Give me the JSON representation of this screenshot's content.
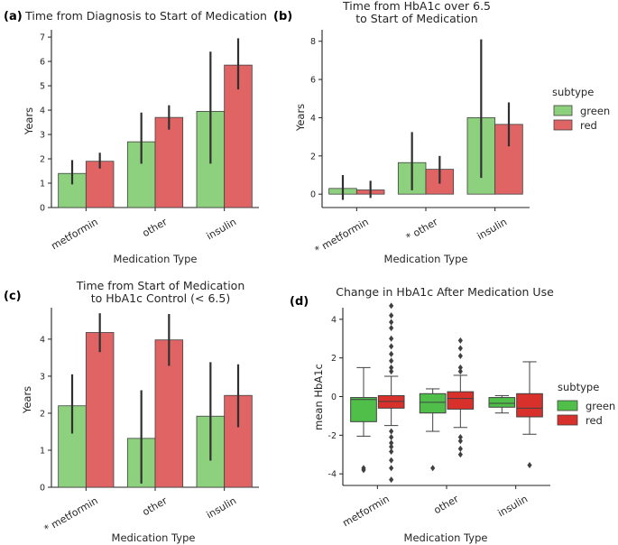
{
  "colors": {
    "green_bar": "#8dd07e",
    "red_bar": "#e06464",
    "green_box": "#4fbf4a",
    "red_box": "#d8302a",
    "edge": "#404040",
    "err": "#303030"
  },
  "legend": {
    "title": "subtype",
    "entries": [
      "green",
      "red"
    ]
  },
  "chart_data": [
    {
      "panel": "(a)",
      "type": "bar",
      "title": "Time from Diagnosis to Start of Medication",
      "xlabel": "Medication Type",
      "ylabel": "Years",
      "ylim": [
        0,
        7.3
      ],
      "yticks": [
        0,
        1,
        2,
        3,
        4,
        5,
        6,
        7
      ],
      "categories": [
        "metformin",
        "other",
        "insulin"
      ],
      "category_labels": [
        "metformin",
        "other",
        "insulin"
      ],
      "series": [
        {
          "name": "green",
          "values": [
            1.4,
            2.7,
            3.95
          ],
          "err_low": [
            0.95,
            1.8,
            1.8
          ],
          "err_high": [
            1.95,
            3.9,
            6.4
          ]
        },
        {
          "name": "red",
          "values": [
            1.9,
            3.7,
            5.85
          ],
          "err_low": [
            1.6,
            3.2,
            4.85
          ],
          "err_high": [
            2.25,
            4.2,
            6.95
          ]
        }
      ]
    },
    {
      "panel": "(b)",
      "type": "bar",
      "title": "Time from HbA1c over 6.5\nto Start of Medication",
      "xlabel": "Medication Type",
      "ylabel": "Years",
      "ylim": [
        -0.7,
        8.6
      ],
      "yticks": [
        0,
        2,
        4,
        6,
        8
      ],
      "categories": [
        "metformin",
        "other",
        "insulin"
      ],
      "category_labels": [
        "* metformin",
        "* other",
        "insulin"
      ],
      "series": [
        {
          "name": "green",
          "values": [
            0.3,
            1.65,
            4.0
          ],
          "err_low": [
            -0.3,
            0.2,
            0.85
          ],
          "err_high": [
            1.0,
            3.25,
            8.1
          ]
        },
        {
          "name": "red",
          "values": [
            0.22,
            1.3,
            3.65
          ],
          "err_low": [
            -0.2,
            0.55,
            2.5
          ],
          "err_high": [
            0.7,
            2.0,
            4.8
          ]
        }
      ]
    },
    {
      "panel": "(c)",
      "type": "bar",
      "title": "Time from Start of Medication\nto HbA1c Control (< 6.5)",
      "xlabel": "Medication Type",
      "ylabel": "Years",
      "ylim": [
        0,
        4.85
      ],
      "yticks": [
        0,
        1,
        2,
        3,
        4
      ],
      "categories": [
        "metformin",
        "other",
        "insulin"
      ],
      "category_labels": [
        "* metformin",
        "other",
        "insulin"
      ],
      "series": [
        {
          "name": "green",
          "values": [
            2.2,
            1.32,
            1.92
          ],
          "err_low": [
            1.45,
            0.1,
            0.72
          ],
          "err_high": [
            3.05,
            2.62,
            3.38
          ]
        },
        {
          "name": "red",
          "values": [
            4.18,
            3.98,
            2.48
          ],
          "err_low": [
            3.65,
            3.28,
            1.62
          ],
          "err_high": [
            4.7,
            4.68,
            3.32
          ]
        }
      ]
    },
    {
      "panel": "(d)",
      "type": "box",
      "title": "Change in HbA1c After Medication Use",
      "xlabel": "Medication Type",
      "ylabel": "mean HbA1c",
      "ylim": [
        -4.6,
        4.6
      ],
      "yticks": [
        -4,
        -2,
        0,
        2,
        4
      ],
      "categories": [
        "metformin",
        "other",
        "insulin"
      ],
      "category_labels": [
        "metformin",
        "other",
        "insulin"
      ],
      "series": [
        {
          "name": "green",
          "boxes": [
            {
              "whislo": -2.05,
              "q1": -1.3,
              "med": -0.15,
              "q3": -0.05,
              "whishi": 1.5,
              "fliers": [
                -3.7,
                -3.8
              ]
            },
            {
              "whislo": -1.8,
              "q1": -0.85,
              "med": -0.3,
              "q3": 0.15,
              "whishi": 0.4,
              "fliers": [
                -3.7
              ]
            },
            {
              "whislo": -0.85,
              "q1": -0.55,
              "med": -0.35,
              "q3": -0.05,
              "whishi": 0.05,
              "fliers": []
            }
          ]
        },
        {
          "name": "red",
          "boxes": [
            {
              "whislo": -1.5,
              "q1": -0.6,
              "med": -0.25,
              "q3": 0.05,
              "whishi": 1.05,
              "fliers": [
                4.7,
                4.2,
                3.85,
                3.55,
                3.0,
                2.6,
                2.2,
                1.85,
                1.5,
                1.3,
                -1.8,
                -2.1,
                -2.4,
                -2.6,
                -2.85,
                -3.3,
                -3.7,
                -4.3
              ]
            },
            {
              "whislo": -1.6,
              "q1": -0.65,
              "med": -0.1,
              "q3": 0.25,
              "whishi": 1.1,
              "fliers": [
                2.9,
                2.5,
                2.1,
                1.5,
                1.3,
                -2.1,
                -2.3,
                -2.7,
                -3.0
              ]
            },
            {
              "whislo": -1.95,
              "q1": -1.05,
              "med": -0.6,
              "q3": 0.15,
              "whishi": 1.8,
              "fliers": [
                -3.55
              ]
            }
          ]
        }
      ]
    }
  ]
}
